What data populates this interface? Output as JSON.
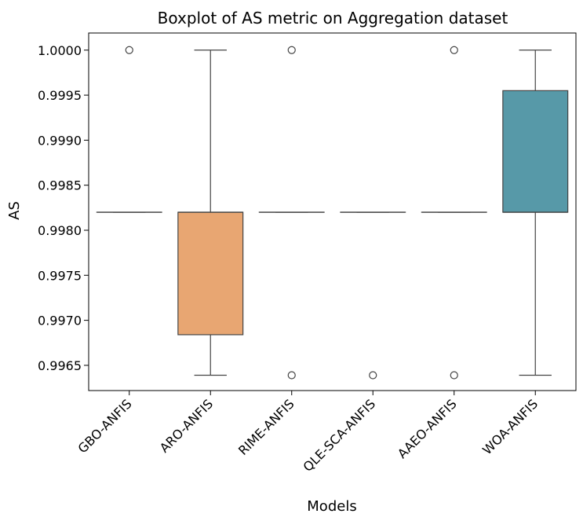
{
  "chart_data": {
    "type": "box",
    "title": "Boxplot of AS metric on Aggregation dataset",
    "xlabel": "Models",
    "ylabel": "AS",
    "ylim": [
      0.99622,
      1.00019
    ],
    "yticks": [
      "0.9965",
      "0.9970",
      "0.9975",
      "0.9980",
      "0.9985",
      "0.9990",
      "0.9995",
      "1.0000"
    ],
    "grid": false,
    "series": [
      {
        "category": "GBO-ANFIS",
        "color": "#ffffff",
        "min": 0.9982,
        "q1": 0.9982,
        "median": 0.9982,
        "q3": 0.9982,
        "max": 0.9982,
        "outliers": [
          1.0
        ]
      },
      {
        "category": "ARO-ANFIS",
        "color": "#e8a672",
        "min": 0.99639,
        "q1": 0.99684,
        "median": 0.9982,
        "q3": 0.9982,
        "max": 1.0,
        "outliers": []
      },
      {
        "category": "RIME-ANFIS",
        "color": "#ffffff",
        "min": 0.9982,
        "q1": 0.9982,
        "median": 0.9982,
        "q3": 0.9982,
        "max": 0.9982,
        "outliers": [
          1.0,
          0.99639
        ]
      },
      {
        "category": "QLE-SCA-ANFIS",
        "color": "#ffffff",
        "min": 0.9982,
        "q1": 0.9982,
        "median": 0.9982,
        "q3": 0.9982,
        "max": 0.9982,
        "outliers": [
          0.99639
        ]
      },
      {
        "category": "AAEO-ANFIS",
        "color": "#ffffff",
        "min": 0.9982,
        "q1": 0.9982,
        "median": 0.9982,
        "q3": 0.9982,
        "max": 0.9982,
        "outliers": [
          1.0,
          0.99639
        ]
      },
      {
        "category": "WOA-ANFIS",
        "color": "#5799a8",
        "min": 0.99639,
        "q1": 0.9982,
        "median": 0.9982,
        "q3": 0.99955,
        "max": 1.0,
        "outliers": []
      }
    ]
  }
}
